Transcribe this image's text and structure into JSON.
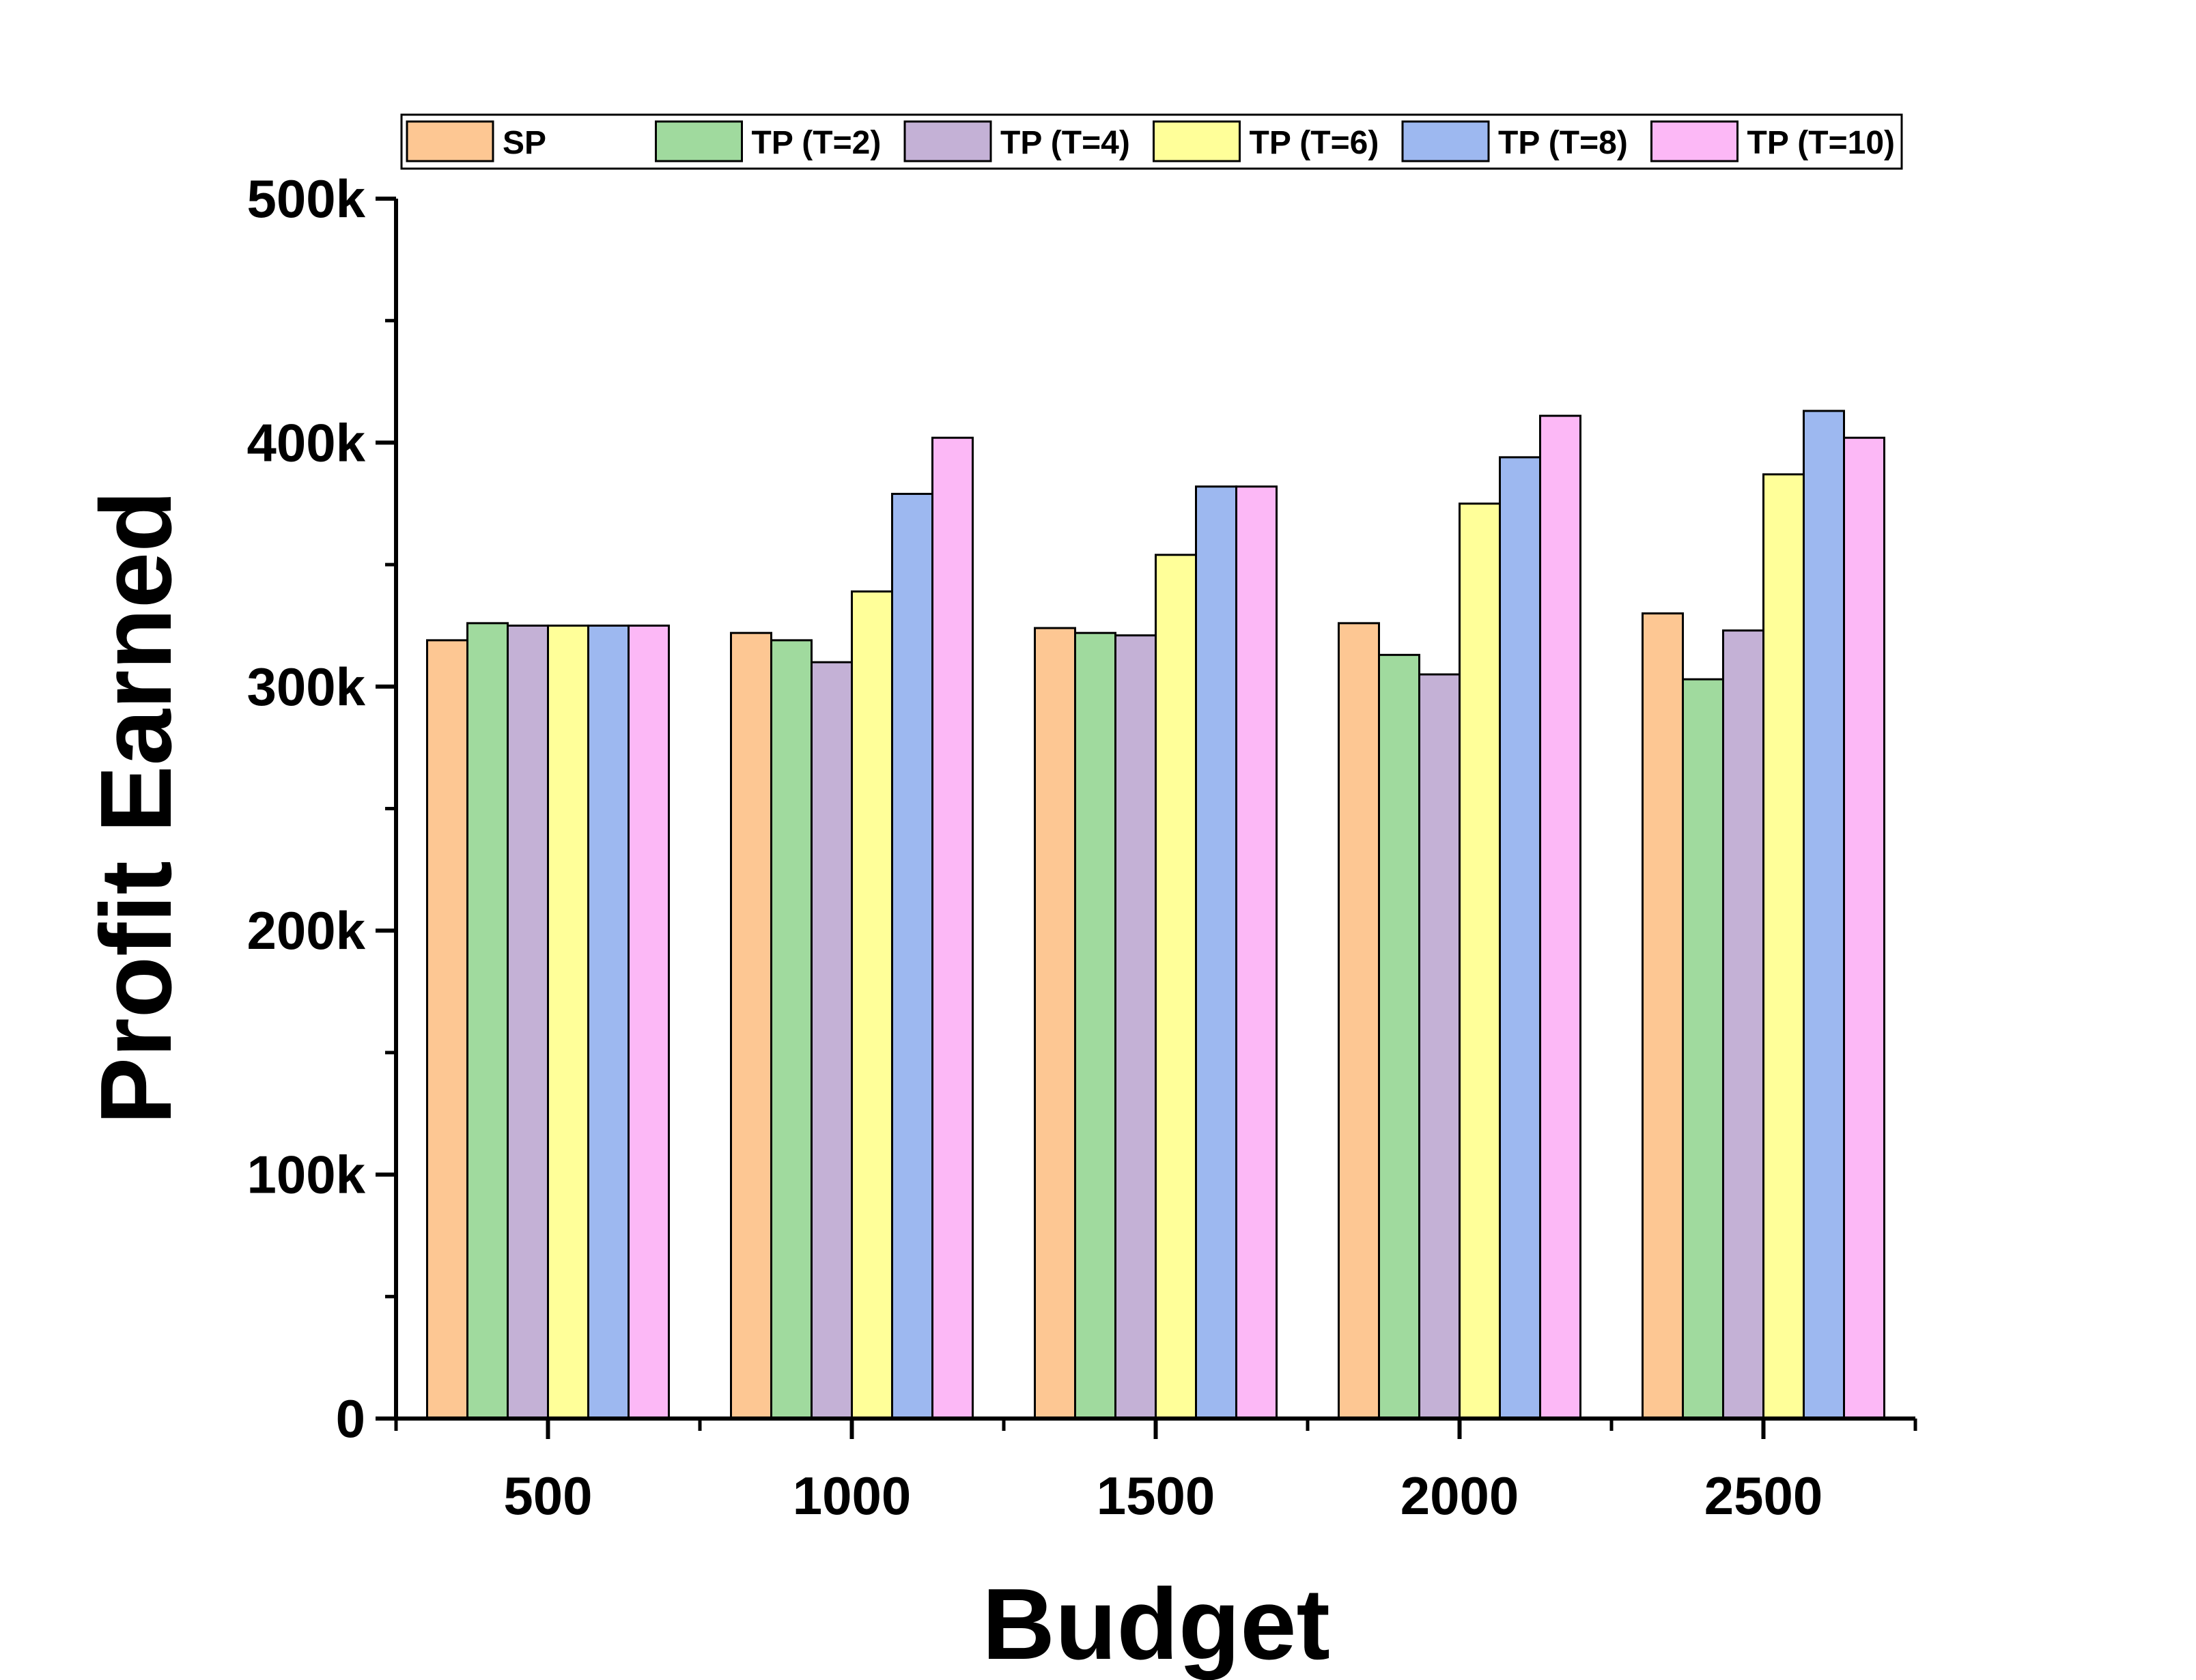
{
  "chart_data": {
    "type": "bar",
    "xlabel": "Budget",
    "ylabel": "Profit Earned",
    "categories": [
      "500",
      "1000",
      "1500",
      "2000",
      "2500"
    ],
    "ylim": [
      0,
      500000
    ],
    "yticks": [
      0,
      100000,
      200000,
      300000,
      400000,
      500000
    ],
    "ytick_labels": [
      "0",
      "100k",
      "200k",
      "300k",
      "400k",
      "500k"
    ],
    "legend_position": "top",
    "grid": false,
    "series": [
      {
        "name": "SP",
        "color": "#FDC793",
        "values": [
          319000,
          322000,
          324000,
          326000,
          330000
        ]
      },
      {
        "name": "TP (T=2)",
        "color": "#A0DA9E",
        "values": [
          326000,
          319000,
          322000,
          313000,
          303000
        ]
      },
      {
        "name": "TP (T=4)",
        "color": "#C4B1D6",
        "values": [
          325000,
          310000,
          321000,
          305000,
          323000
        ]
      },
      {
        "name": "TP (T=6)",
        "color": "#FFFF99",
        "values": [
          325000,
          339000,
          354000,
          375000,
          387000
        ]
      },
      {
        "name": "TP (T=8)",
        "color": "#9DB8F0",
        "values": [
          325000,
          379000,
          382000,
          394000,
          413000
        ]
      },
      {
        "name": "TP (T=10)",
        "color": "#FCB8F6",
        "values": [
          325000,
          402000,
          382000,
          411000,
          402000
        ]
      }
    ]
  }
}
